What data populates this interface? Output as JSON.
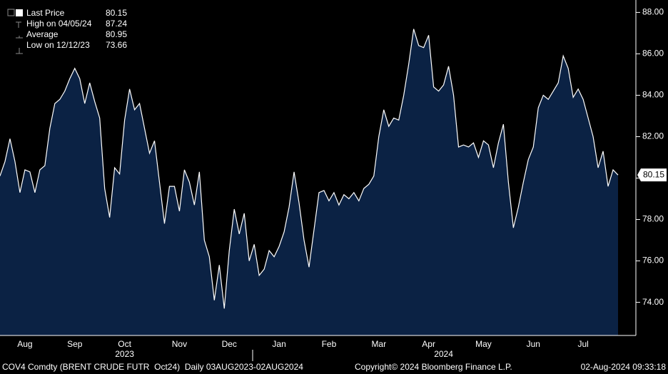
{
  "chart_data": {
    "type": "area",
    "categories": [
      null,
      null,
      null,
      null,
      null,
      "Aug",
      null,
      null,
      null,
      null,
      null,
      null,
      null,
      null,
      null,
      "Sep",
      null,
      null,
      null,
      null,
      null,
      null,
      null,
      null,
      null,
      "Oct",
      null,
      null,
      null,
      null,
      null,
      null,
      null,
      null,
      null,
      null,
      "Nov",
      null,
      null,
      null,
      null,
      null,
      null,
      null,
      null,
      null,
      "Dec",
      null,
      null,
      null,
      null,
      null,
      null,
      null,
      null,
      null,
      "Jan",
      null,
      null,
      null,
      null,
      null,
      null,
      null,
      null,
      null,
      "Feb",
      null,
      null,
      null,
      null,
      null,
      null,
      null,
      null,
      null,
      "Mar",
      null,
      null,
      null,
      null,
      null,
      null,
      null,
      null,
      null,
      "Apr",
      null,
      null,
      null,
      null,
      null,
      null,
      null,
      null,
      null,
      null,
      "May",
      null,
      null,
      null,
      null,
      null,
      null,
      null,
      null,
      null,
      "Jun",
      null,
      null,
      null,
      null,
      null,
      null,
      null,
      null,
      null,
      "Jul",
      null,
      null,
      null,
      null,
      null,
      null,
      null
    ],
    "years": [
      null,
      null,
      null,
      null,
      null,
      null,
      null,
      null,
      null,
      null,
      null,
      null,
      null,
      null,
      null,
      null,
      null,
      null,
      null,
      null,
      null,
      null,
      null,
      null,
      null,
      "2023",
      null,
      null,
      null,
      null,
      null,
      null,
      null,
      null,
      null,
      null,
      null,
      null,
      null,
      null,
      null,
      null,
      null,
      null,
      null,
      null,
      null,
      null,
      null,
      null,
      null,
      null,
      null,
      null,
      null,
      null,
      null,
      null,
      null,
      null,
      null,
      null,
      null,
      null,
      null,
      null,
      null,
      null,
      null,
      null,
      null,
      null,
      null,
      null,
      null,
      null,
      null,
      null,
      null,
      null,
      null,
      null,
      null,
      null,
      null,
      null,
      null,
      null,
      null,
      "2024",
      null,
      null,
      null,
      null,
      null,
      null,
      null,
      null,
      null,
      null,
      null,
      null,
      null,
      null,
      null,
      null,
      null,
      null,
      null,
      null,
      null,
      null,
      null,
      null,
      null,
      null,
      null,
      null,
      null,
      null,
      null,
      null,
      null,
      null,
      null
    ],
    "series": [
      {
        "name": "Last Price",
        "color": "#ffffff",
        "fill": "#0b2244",
        "values": [
          80.1,
          80.8,
          81.9,
          80.8,
          79.3,
          80.4,
          80.3,
          79.3,
          80.4,
          80.6,
          82.4,
          83.6,
          83.8,
          84.2,
          84.8,
          85.3,
          84.8,
          83.6,
          84.6,
          83.7,
          82.9,
          79.5,
          78.1,
          80.5,
          80.2,
          82.8,
          84.3,
          83.3,
          83.6,
          82.4,
          81.2,
          81.8,
          79.8,
          77.8,
          79.6,
          79.6,
          78.4,
          80.4,
          79.8,
          78.7,
          80.3,
          77.0,
          76.2,
          74.1,
          75.8,
          73.7,
          76.5,
          78.5,
          77.3,
          78.3,
          76.0,
          76.8,
          75.3,
          75.6,
          76.5,
          76.2,
          76.7,
          77.4,
          78.6,
          80.3,
          78.8,
          77.0,
          75.7,
          77.5,
          79.3,
          79.4,
          78.9,
          79.3,
          78.7,
          79.2,
          79.0,
          79.3,
          78.9,
          79.5,
          79.7,
          80.1,
          82.0,
          83.3,
          82.5,
          82.9,
          82.8,
          84.0,
          85.5,
          87.2,
          86.4,
          86.3,
          86.9,
          84.4,
          84.2,
          84.5,
          85.4,
          84.0,
          81.5,
          81.6,
          81.5,
          81.7,
          81.0,
          81.8,
          81.6,
          80.5,
          81.7,
          82.6,
          79.8,
          77.6,
          78.6,
          79.8,
          80.9,
          81.5,
          83.4,
          84.0,
          83.8,
          84.2,
          84.6,
          85.9,
          85.3,
          83.9,
          84.3,
          83.8,
          82.9,
          82.0,
          80.5,
          81.3,
          79.6,
          80.4,
          80.15
        ]
      }
    ],
    "legend": [
      {
        "label": "Last Price",
        "value": 80.15
      },
      {
        "label": "High on 04/05/24",
        "value": 87.24
      },
      {
        "label": "Average",
        "value": 80.95
      },
      {
        "label": "Low on 12/12/23",
        "value": 73.66
      }
    ],
    "ylim": [
      72.4,
      88.6
    ],
    "yticks": [
      {
        "value": 74,
        "label": "74.00"
      },
      {
        "value": 76,
        "label": "76.00"
      },
      {
        "value": 78,
        "label": "78.00"
      },
      {
        "value": 80,
        "label": "80.00"
      },
      {
        "value": 82,
        "label": "82.00"
      },
      {
        "value": 84,
        "label": "84.00"
      },
      {
        "value": 86,
        "label": "86.00"
      },
      {
        "value": 88,
        "label": "88.00"
      }
    ],
    "grid": false,
    "footer": {
      "left": "COV4 Comdty (BRENT CRUDE FUTR  Oct24)  Daily 03AUG2023-02AUG2024",
      "center": "Copyright© 2024 Bloomberg Finance L.P.",
      "right": "02-Aug-2024 09:33:18"
    }
  }
}
